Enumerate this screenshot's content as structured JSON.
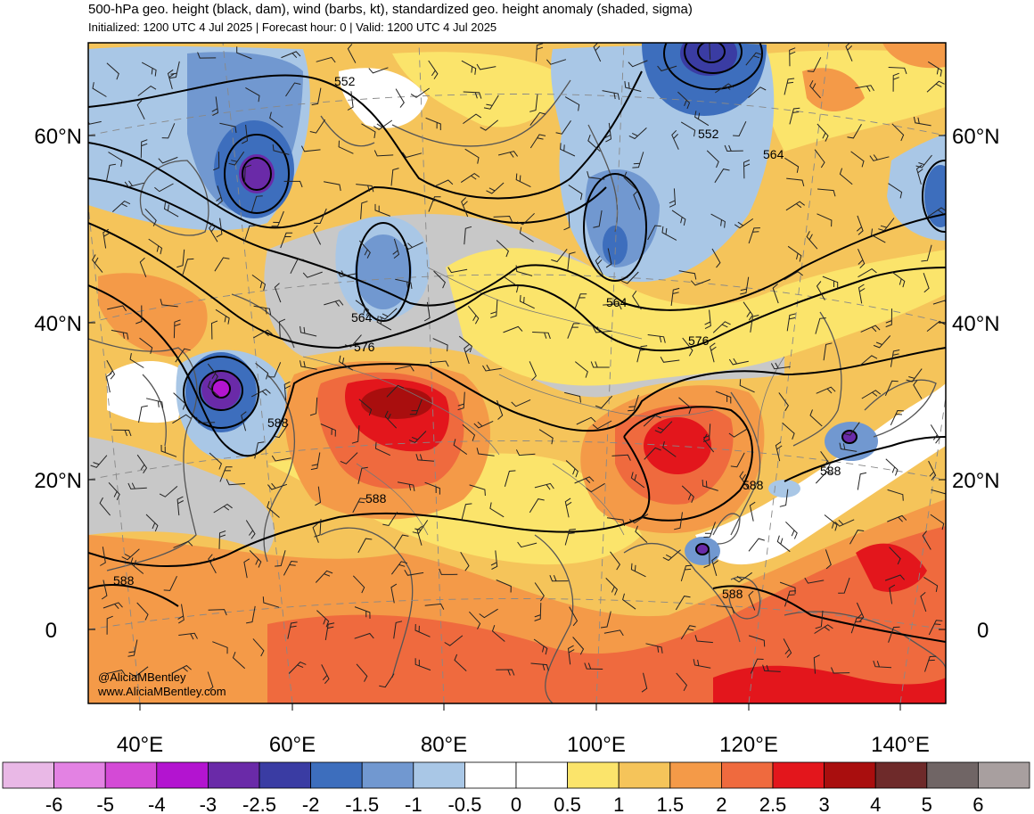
{
  "title": "500-hPa geo. height (black, dam), wind (barbs, kt), standardized geo. height anomaly (shaded, sigma)",
  "subtitle": "Initialized: 1200 UTC 4 Jul 2025 | Forecast hour: 0 | Valid: 1200 UTC 4 Jul 2025",
  "credits": [
    "@AliciaMBentley",
    "www.AliciaMBentley.com"
  ],
  "lat_labels": [
    "60°N",
    "40°N",
    "20°N",
    "0"
  ],
  "lon_labels": [
    "40°E",
    "60°E",
    "80°E",
    "100°E",
    "120°E",
    "140°E"
  ],
  "contour_labels": [
    "552",
    "552",
    "564",
    "564",
    "564",
    "576",
    "576",
    "588",
    "588",
    "588",
    "588",
    "588",
    "588"
  ],
  "colorbar": {
    "labels": [
      "-6",
      "-5",
      "-4",
      "-3",
      "-2.5",
      "-2",
      "-1.5",
      "-1",
      "-0.5",
      "0",
      "0.5",
      "1",
      "1.5",
      "2",
      "2.5",
      "3",
      "4",
      "5",
      "6"
    ],
    "colors": [
      "#e9b8e6",
      "#e382e3",
      "#d44ad6",
      "#b314d0",
      "#6a2aa8",
      "#3a3ca3",
      "#3d6ebd",
      "#7198d0",
      "#a9c7e6",
      "#ffffff",
      "#ffffff",
      "#fbe46b",
      "#f5c45a",
      "#f49a48",
      "#ef6a3e",
      "#e3161c",
      "#a90e0e",
      "#6e2a2a",
      "#706565",
      "#a89f9f"
    ]
  },
  "anomaly_regions": [
    {
      "name": "european-trough",
      "sigma": -1.5
    },
    {
      "name": "scandinavian-low",
      "sigma": -2.5
    },
    {
      "name": "caspian-low",
      "sigma": -1.5
    },
    {
      "name": "arctic-low",
      "sigma": -2.5
    },
    {
      "name": "mongolia-trough",
      "sigma": -1.5
    },
    {
      "name": "eastern-mediterranean-low",
      "sigma": -3
    },
    {
      "name": "tibetan-high",
      "sigma": 4
    },
    {
      "name": "south-china-high",
      "sigma": 3
    },
    {
      "name": "pacific-low",
      "sigma": -2.5
    },
    {
      "name": "south-china-sea-low",
      "sigma": -1.5
    },
    {
      "name": "tropical-warm-belt",
      "sigma": 2
    }
  ]
}
